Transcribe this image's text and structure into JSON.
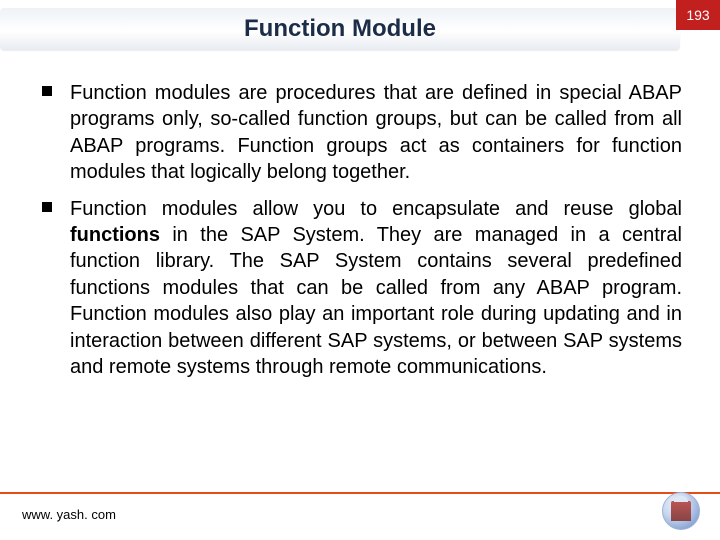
{
  "header": {
    "title": "Function Module",
    "page_number": "193",
    "badge_bg": "#c21f1f",
    "title_color": "#1c2e47"
  },
  "bullets": [
    {
      "text": "Function modules are procedures that are defined in special ABAP programs only, so-called function groups, but can be called from all ABAP programs. Function groups act as containers for function modules that logically belong together."
    },
    {
      "prefix": "Function modules allow you to encapsulate and reuse global ",
      "bold": "functions",
      "suffix": " in the SAP System. They are managed in a central function library. The SAP System contains several predefined functions modules that can be called from any ABAP program. Function modules also play an important role during updating and in interaction between different SAP systems, or between SAP systems and remote systems through remote communications."
    }
  ],
  "footer": {
    "url": "www. yash. com",
    "line_color": "#e74b1a"
  }
}
